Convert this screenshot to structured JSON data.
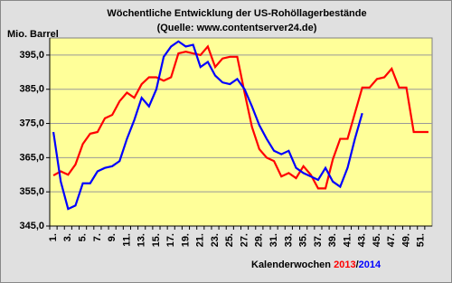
{
  "chart_data": {
    "type": "line",
    "title": "Wöchentliche Entwicklung der US-Rohöllagerbestände",
    "subtitle": "(Quelle: www.contentserver24.de)",
    "y_label": "Mio. Barrel",
    "x_label": "Kalenderwochen",
    "x_label_separator": "/",
    "categories": [
      "1.",
      null,
      "3.",
      null,
      "5.",
      null,
      "7.",
      null,
      "9.",
      null,
      "11.",
      null,
      "13.",
      null,
      "15.",
      null,
      "17.",
      null,
      "19.",
      null,
      "21.",
      null,
      "23.",
      null,
      "25.",
      null,
      "27.",
      null,
      "29.",
      null,
      "31.",
      null,
      "33.",
      null,
      "35.",
      null,
      "37.",
      null,
      "39.",
      null,
      "41.",
      null,
      "43.",
      null,
      "45.",
      null,
      "47.",
      null,
      "49.",
      null,
      "51.",
      null
    ],
    "series": [
      {
        "name": "2013",
        "color": "#ff0000",
        "values": [
          359.8,
          361,
          360,
          363,
          369,
          372,
          372.5,
          376.5,
          377.5,
          381.5,
          384,
          382.5,
          386.5,
          388.5,
          388.5,
          387.5,
          388.5,
          395.5,
          396,
          395.5,
          395,
          397.5,
          391.5,
          394,
          394.5,
          394.5,
          384,
          374,
          367.5,
          365,
          364,
          359.5,
          360.5,
          359,
          362.5,
          360,
          356,
          356,
          364.5,
          370.5,
          370.5,
          378,
          385.5,
          385.5,
          388,
          388.5,
          391,
          385.5,
          385.5,
          372.5,
          372.5,
          372.5
        ]
      },
      {
        "name": "2014",
        "color": "#0000ff",
        "values": [
          372.5,
          358,
          350,
          351,
          357.5,
          357.5,
          361,
          362,
          362.5,
          364,
          370.5,
          376,
          382.5,
          380,
          385,
          394.5,
          397.5,
          399,
          397.5,
          398,
          391.5,
          393,
          389,
          387,
          386.5,
          388,
          385,
          380,
          374.5,
          370.5,
          367,
          366,
          367,
          362,
          360.5,
          359.5,
          358.5,
          362,
          358,
          356.5,
          362,
          370.5,
          378,
          null,
          null,
          null,
          null,
          null,
          null,
          null,
          null,
          null
        ]
      }
    ],
    "ylim": [
      345,
      400
    ],
    "yticks": [
      {
        "value": 345,
        "label": "345,0"
      },
      {
        "value": 355,
        "label": "355,0"
      },
      {
        "value": 365,
        "label": "365,0"
      },
      {
        "value": 375,
        "label": "375,0"
      },
      {
        "value": 385,
        "label": "385,0"
      },
      {
        "value": 395,
        "label": "395,0"
      }
    ],
    "grid": true
  }
}
